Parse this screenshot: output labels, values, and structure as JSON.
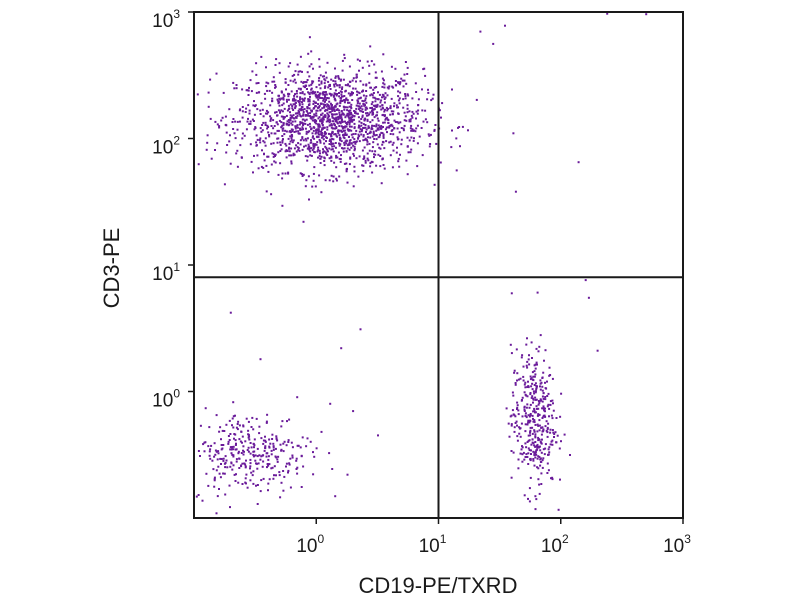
{
  "chart_data": {
    "type": "scatter",
    "title": "",
    "xlabel": "CD19-PE/TXRD",
    "ylabel": "CD3-PE",
    "x_scale": "log",
    "y_scale": "log",
    "xlim": [
      0.1,
      1000
    ],
    "ylim": [
      0.1,
      1000
    ],
    "x_ticks": [
      {
        "base": "10",
        "exp": "0",
        "value": 1
      },
      {
        "base": "10",
        "exp": "1",
        "value": 10
      },
      {
        "base": "10",
        "exp": "2",
        "value": 100
      },
      {
        "base": "10",
        "exp": "3",
        "value": 1000
      }
    ],
    "y_ticks": [
      {
        "base": "10",
        "exp": "0",
        "value": 1
      },
      {
        "base": "10",
        "exp": "1",
        "value": 10
      },
      {
        "base": "10",
        "exp": "2",
        "value": 100
      },
      {
        "base": "10",
        "exp": "3",
        "value": 1000
      }
    ],
    "quadrant_gates": {
      "x": 10,
      "y": 8
    },
    "point_color": "#6a1b9a",
    "grid": false,
    "legend": "none",
    "populations": [
      {
        "center": [
          1.3,
          140
        ],
        "spread_log": [
          0.38,
          0.2
        ],
        "count": 1700
      },
      {
        "center": [
          0.28,
          0.33
        ],
        "spread_log": [
          0.25,
          0.16
        ],
        "count": 330
      },
      {
        "center": [
          60,
          0.6
        ],
        "spread_log": [
          0.09,
          0.28
        ],
        "count": 390
      }
    ],
    "outlier_points": [
      [
        22,
        700
      ],
      [
        28,
        560
      ],
      [
        35,
        780
      ],
      [
        240,
        970
      ],
      [
        500,
        960
      ],
      [
        41,
        110
      ],
      [
        43,
        38
      ],
      [
        140,
        65
      ],
      [
        160,
        7.6
      ],
      [
        170,
        5.5
      ],
      [
        200,
        2.1
      ],
      [
        0.2,
        4.2
      ],
      [
        0.35,
        1.8
      ],
      [
        1.6,
        2.2
      ],
      [
        2.3,
        3.1
      ],
      [
        1.3,
        0.8
      ],
      [
        2.0,
        0.7
      ],
      [
        3.2,
        0.45
      ],
      [
        0.6,
        0.6
      ],
      [
        0.7,
        0.25
      ],
      [
        0.9,
        0.4
      ],
      [
        1.8,
        0.22
      ]
    ]
  }
}
